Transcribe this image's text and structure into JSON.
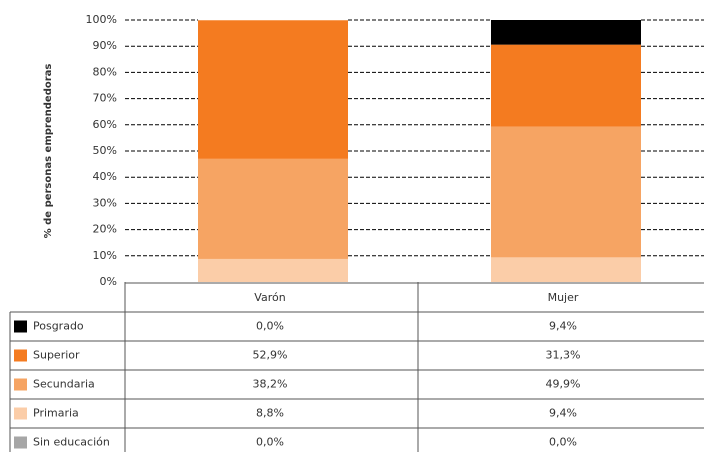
{
  "chart_data": {
    "type": "stacked_bar",
    "y_label": "% de personas emprendedoras",
    "categories": [
      "Varón",
      "Mujer"
    ],
    "series": [
      {
        "name": "Posgrado",
        "color": "#000000",
        "values": [
          0.0,
          9.4
        ],
        "value_labels": [
          "0,0%",
          "9,4%"
        ]
      },
      {
        "name": "Superior",
        "color": "#f47b20",
        "values": [
          52.9,
          31.3
        ],
        "value_labels": [
          "52,9%",
          "31,3%"
        ]
      },
      {
        "name": "Secundaria",
        "color": "#f6a463",
        "values": [
          38.2,
          49.9
        ],
        "value_labels": [
          "38,2%",
          "49,9%"
        ]
      },
      {
        "name": "Primaria",
        "color": "#fbcda8",
        "values": [
          8.8,
          9.4
        ],
        "value_labels": [
          "8,8%",
          "9,4%"
        ]
      },
      {
        "name": "Sin educación",
        "color": "#a6a6a6",
        "values": [
          0.0,
          0.0
        ],
        "value_labels": [
          "0,0%",
          "0,0%"
        ]
      }
    ],
    "ylim": [
      0,
      100
    ],
    "yticks": [
      {
        "value": 0,
        "label": "0%"
      },
      {
        "value": 10,
        "label": "10%"
      },
      {
        "value": 20,
        "label": "20%"
      },
      {
        "value": 30,
        "label": "30%"
      },
      {
        "value": 40,
        "label": "40%"
      },
      {
        "value": 50,
        "label": "50%"
      },
      {
        "value": 60,
        "label": "60%"
      },
      {
        "value": 70,
        "label": "70%"
      },
      {
        "value": 80,
        "label": "80%"
      },
      {
        "value": 90,
        "label": "90%"
      },
      {
        "value": 100,
        "label": "100%"
      }
    ],
    "grid": true
  }
}
